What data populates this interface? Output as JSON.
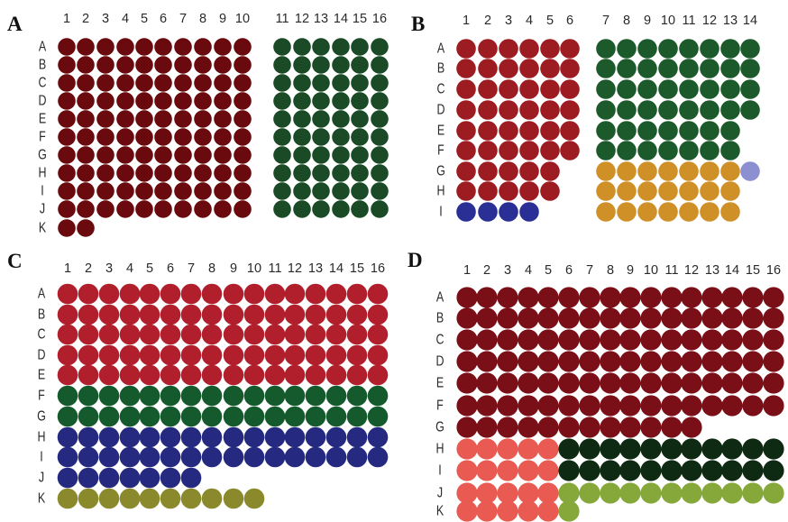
{
  "panels": [
    {
      "id": "A",
      "label": "A",
      "columns": [
        "1",
        "2",
        "3",
        "4",
        "5",
        "6",
        "7",
        "8",
        "9",
        "10",
        "11",
        "12",
        "13",
        "14",
        "15",
        "16"
      ],
      "rows": [
        "A",
        "B",
        "C",
        "D",
        "E",
        "F",
        "G",
        "H",
        "I",
        "J",
        "K"
      ],
      "blocks": [
        {
          "fill": "#6b0a0e",
          "cells": [
            [
              0,
              0,
              10
            ],
            [
              1,
              0,
              10
            ],
            [
              2,
              0,
              10
            ],
            [
              3,
              0,
              10
            ],
            [
              4,
              0,
              10
            ],
            [
              5,
              0,
              10
            ],
            [
              6,
              0,
              10
            ],
            [
              7,
              0,
              10
            ],
            [
              8,
              0,
              10
            ],
            [
              9,
              0,
              10
            ],
            [
              10,
              0,
              2
            ]
          ]
        },
        {
          "fill": "#1b4a26",
          "cells": [
            [
              0,
              10,
              16
            ],
            [
              1,
              10,
              16
            ],
            [
              2,
              10,
              16
            ],
            [
              3,
              10,
              16
            ],
            [
              4,
              10,
              16
            ],
            [
              5,
              10,
              16
            ],
            [
              6,
              10,
              16
            ],
            [
              7,
              10,
              16
            ],
            [
              8,
              10,
              16
            ],
            [
              9,
              10,
              16
            ]
          ]
        }
      ]
    },
    {
      "id": "B",
      "label": "B",
      "columns": [
        "1",
        "2",
        "3",
        "4",
        "5",
        "6",
        "7",
        "8",
        "9",
        "10",
        "11",
        "12",
        "13",
        "14"
      ],
      "rows": [
        "A",
        "B",
        "C",
        "D",
        "E",
        "F",
        "G",
        "H",
        "I"
      ],
      "blocks": [
        {
          "fill": "#9c1c22",
          "cells": [
            [
              0,
              0,
              6
            ],
            [
              1,
              0,
              6
            ],
            [
              2,
              0,
              6
            ],
            [
              3,
              0,
              6
            ],
            [
              4,
              0,
              6
            ],
            [
              5,
              0,
              6
            ],
            [
              6,
              0,
              5
            ],
            [
              7,
              0,
              5
            ]
          ]
        },
        {
          "fill": "#2a2f96",
          "cells": [
            [
              8,
              0,
              4
            ]
          ]
        },
        {
          "fill": "#1d5a2b",
          "cells": [
            [
              0,
              6,
              14
            ],
            [
              1,
              6,
              14
            ],
            [
              2,
              6,
              14
            ],
            [
              3,
              6,
              14
            ],
            [
              4,
              6,
              13
            ],
            [
              5,
              6,
              13
            ]
          ]
        },
        {
          "fill": "#d09028",
          "cells": [
            [
              6,
              6,
              13
            ],
            [
              7,
              6,
              13
            ],
            [
              8,
              6,
              13
            ]
          ]
        },
        {
          "fill": "#8c8fd0",
          "cells": [
            [
              6,
              13,
              14
            ]
          ]
        }
      ]
    },
    {
      "id": "C",
      "label": "C",
      "columns": [
        "1",
        "2",
        "3",
        "4",
        "5",
        "6",
        "7",
        "8",
        "9",
        "10",
        "11",
        "12",
        "13",
        "14",
        "15",
        "16"
      ],
      "rows": [
        "A",
        "B",
        "C",
        "D",
        "E",
        "F",
        "G",
        "H",
        "I",
        "J",
        "K"
      ],
      "blocks": [
        {
          "fill": "#b01f2b",
          "cells": [
            [
              0,
              0,
              16
            ],
            [
              1,
              0,
              16
            ],
            [
              2,
              0,
              16
            ],
            [
              3,
              0,
              16
            ],
            [
              4,
              0,
              16
            ]
          ]
        },
        {
          "fill": "#145a2c",
          "cells": [
            [
              5,
              0,
              16
            ],
            [
              6,
              0,
              16
            ]
          ]
        },
        {
          "fill": "#252a80",
          "cells": [
            [
              7,
              0,
              16
            ],
            [
              8,
              0,
              16
            ],
            [
              9,
              0,
              7
            ]
          ]
        },
        {
          "fill": "#8a8a2c",
          "cells": [
            [
              10,
              0,
              10
            ]
          ]
        }
      ]
    },
    {
      "id": "D",
      "label": "D",
      "columns": [
        "1",
        "2",
        "3",
        "4",
        "5",
        "6",
        "7",
        "8",
        "9",
        "10",
        "11",
        "12",
        "13",
        "14",
        "15",
        "16"
      ],
      "rows": [
        "A",
        "B",
        "C",
        "D",
        "E",
        "F",
        "G",
        "H",
        "I",
        "J",
        "K"
      ],
      "blocks": [
        {
          "fill": "#7a0f17",
          "cells": [
            [
              0,
              0,
              16
            ],
            [
              1,
              0,
              16
            ],
            [
              2,
              0,
              16
            ],
            [
              3,
              0,
              16
            ],
            [
              4,
              0,
              16
            ],
            [
              5,
              0,
              16
            ],
            [
              6,
              0,
              12
            ]
          ]
        },
        {
          "fill": "#e85a52",
          "cells": [
            [
              7,
              0,
              5
            ],
            [
              8,
              0,
              5
            ],
            [
              9,
              0,
              5
            ],
            [
              10,
              0,
              5
            ]
          ]
        },
        {
          "fill": "#0f2a12",
          "cells": [
            [
              7,
              5,
              16
            ],
            [
              8,
              5,
              16
            ]
          ]
        },
        {
          "fill": "#86a83a",
          "cells": [
            [
              9,
              5,
              16
            ],
            [
              10,
              5,
              6
            ]
          ]
        }
      ]
    }
  ]
}
